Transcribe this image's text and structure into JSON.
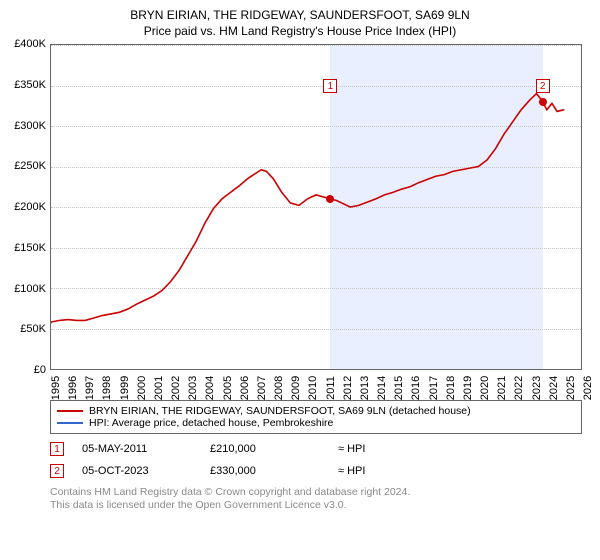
{
  "title_line1": "BRYN EIRIAN, THE RIDGEWAY, SAUNDERSFOOT, SA69 9LN",
  "title_line2": "Price paid vs. HM Land Registry's House Price Index (HPI)",
  "chart": {
    "type": "line",
    "background_color": "#ffffff",
    "grid_color": "#c7c7c7",
    "border_color": "#666666",
    "x_min": 1995,
    "x_max": 2026,
    "y_min": 0,
    "y_max": 400000,
    "y_ticks": [
      0,
      50000,
      100000,
      150000,
      200000,
      250000,
      300000,
      350000,
      400000
    ],
    "y_tick_labels": [
      "£0",
      "£50K",
      "£100K",
      "£150K",
      "£200K",
      "£250K",
      "£300K",
      "£350K",
      "£400K"
    ],
    "x_ticks": [
      1995,
      1996,
      1997,
      1998,
      1999,
      2000,
      2001,
      2002,
      2003,
      2004,
      2005,
      2006,
      2007,
      2008,
      2009,
      2010,
      2011,
      2012,
      2013,
      2014,
      2015,
      2016,
      2017,
      2018,
      2019,
      2020,
      2021,
      2022,
      2023,
      2024,
      2025,
      2026
    ],
    "shade_band": {
      "x_start": 2011.34,
      "x_end": 2023.76,
      "color": "#e9efff"
    },
    "series_red": {
      "label": "BRYN EIRIAN, THE RIDGEWAY, SAUNDERSFOOT, SA69 9LN (detached house)",
      "color": "#cc0000",
      "line_width": 1.6,
      "data": [
        [
          1995.0,
          58000
        ],
        [
          1995.5,
          60000
        ],
        [
          1996.0,
          61000
        ],
        [
          1996.5,
          60000
        ],
        [
          1997.0,
          60000
        ],
        [
          1997.5,
          63000
        ],
        [
          1998.0,
          66000
        ],
        [
          1998.5,
          68000
        ],
        [
          1999.0,
          70000
        ],
        [
          1999.5,
          74000
        ],
        [
          2000.0,
          80000
        ],
        [
          2000.5,
          85000
        ],
        [
          2001.0,
          90000
        ],
        [
          2001.5,
          97000
        ],
        [
          2002.0,
          108000
        ],
        [
          2002.5,
          122000
        ],
        [
          2003.0,
          140000
        ],
        [
          2003.5,
          158000
        ],
        [
          2004.0,
          180000
        ],
        [
          2004.5,
          198000
        ],
        [
          2005.0,
          210000
        ],
        [
          2005.5,
          218000
        ],
        [
          2006.0,
          226000
        ],
        [
          2006.5,
          235000
        ],
        [
          2007.0,
          242000
        ],
        [
          2007.3,
          246000
        ],
        [
          2007.6,
          244000
        ],
        [
          2008.0,
          235000
        ],
        [
          2008.5,
          218000
        ],
        [
          2009.0,
          205000
        ],
        [
          2009.5,
          202000
        ],
        [
          2010.0,
          210000
        ],
        [
          2010.5,
          215000
        ],
        [
          2011.0,
          212000
        ],
        [
          2011.34,
          210000
        ],
        [
          2011.7,
          208000
        ],
        [
          2012.0,
          205000
        ],
        [
          2012.5,
          200000
        ],
        [
          2013.0,
          202000
        ],
        [
          2013.5,
          206000
        ],
        [
          2014.0,
          210000
        ],
        [
          2014.5,
          215000
        ],
        [
          2015.0,
          218000
        ],
        [
          2015.5,
          222000
        ],
        [
          2016.0,
          225000
        ],
        [
          2016.5,
          230000
        ],
        [
          2017.0,
          234000
        ],
        [
          2017.5,
          238000
        ],
        [
          2018.0,
          240000
        ],
        [
          2018.5,
          244000
        ],
        [
          2019.0,
          246000
        ],
        [
          2019.5,
          248000
        ],
        [
          2020.0,
          250000
        ],
        [
          2020.5,
          258000
        ],
        [
          2021.0,
          272000
        ],
        [
          2021.5,
          290000
        ],
        [
          2022.0,
          305000
        ],
        [
          2022.5,
          320000
        ],
        [
          2023.0,
          332000
        ],
        [
          2023.4,
          340000
        ],
        [
          2023.76,
          330000
        ],
        [
          2024.0,
          320000
        ],
        [
          2024.3,
          328000
        ],
        [
          2024.6,
          318000
        ],
        [
          2025.0,
          320000
        ]
      ]
    },
    "series_blue": {
      "label": "HPI: Average price, detached house, Pembrokeshire",
      "color": "#3366cc",
      "line_width": 1.2,
      "visible_segments": [
        [
          [
            1995.0,
            57000
          ],
          [
            1995.05,
            57000
          ]
        ],
        [
          [
            2025.0,
            320000
          ],
          [
            2025.05,
            320000
          ]
        ]
      ]
    },
    "sale_markers": [
      {
        "n": "1",
        "x": 2011.34,
        "y": 210000,
        "label_y": 350000,
        "dot_color": "#cc0000"
      },
      {
        "n": "2",
        "x": 2023.76,
        "y": 330000,
        "label_y": 350000,
        "dot_color": "#cc0000"
      }
    ]
  },
  "legend": {
    "items": [
      {
        "color": "#cc0000",
        "text": "BRYN EIRIAN, THE RIDGEWAY, SAUNDERSFOOT, SA69 9LN (detached house)"
      },
      {
        "color": "#3366cc",
        "text": "HPI: Average price, detached house, Pembrokeshire"
      }
    ]
  },
  "sales": [
    {
      "n": "1",
      "date": "05-MAY-2011",
      "price": "£210,000",
      "relation": "≈ HPI"
    },
    {
      "n": "2",
      "date": "05-OCT-2023",
      "price": "£330,000",
      "relation": "≈ HPI"
    }
  ],
  "footnote_line1": "Contains HM Land Registry data © Crown copyright and database right 2024.",
  "footnote_line2": "This data is licensed under the Open Government Licence v3.0."
}
